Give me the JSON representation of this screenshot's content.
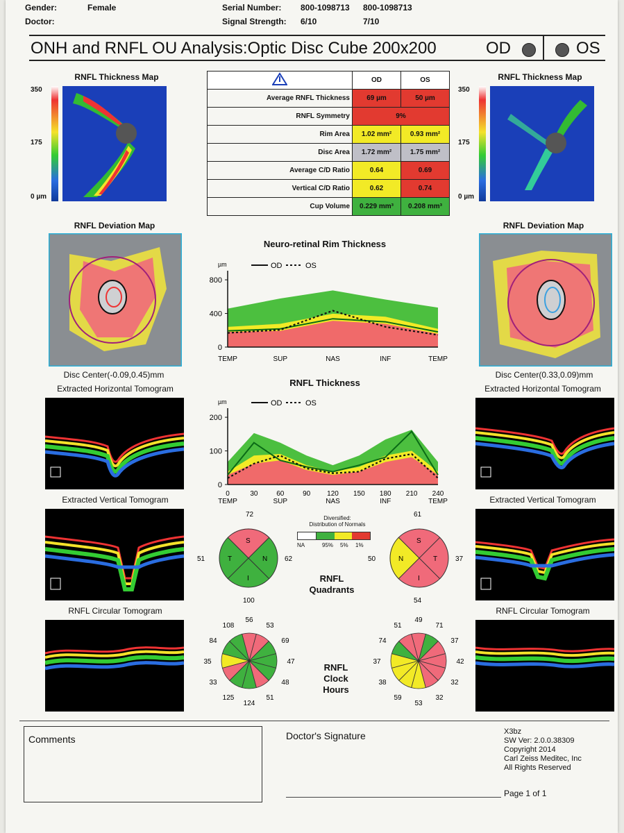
{
  "header": {
    "gender_label": "Gender:",
    "gender_value": "Female",
    "doctor_label": "Doctor:",
    "serial_label": "Serial Number:",
    "serial_od": "800-1098713",
    "serial_os": "800-1098713",
    "signal_label": "Signal Strength:",
    "signal_od": "6/10",
    "signal_os": "7/10"
  },
  "title": {
    "text": "ONH and RNFL OU Analysis:Optic Disc Cube 200x200",
    "od": "OD",
    "os": "OS"
  },
  "maps": {
    "thickness_title": "RNFL Thickness Map",
    "scale_max": "350",
    "scale_mid": "175",
    "scale_min": "0 µm",
    "deviation_title": "RNFL Deviation Map",
    "disc_center_od": "Disc Center(-0.09,0.45)mm",
    "disc_center_os": "Disc Center(0.33,0.09)mm",
    "horiz_title": "Extracted Horizontal Tomogram",
    "vert_title": "Extracted Vertical Tomogram",
    "circ_title": "RNFL Circular Tomogram"
  },
  "metrics": {
    "col_od": "OD",
    "col_os": "OS",
    "rows": [
      {
        "label": "Average RNFL Thickness",
        "od": "69 µm",
        "os": "50 µm",
        "od_color": "red",
        "os_color": "red"
      },
      {
        "label": "RNFL Symmetry",
        "merged": "9%",
        "color": "red"
      },
      {
        "label": "Rim Area",
        "od": "1.02 mm²",
        "os": "0.93 mm²",
        "od_color": "yellow",
        "os_color": "yellow"
      },
      {
        "label": "Disc Area",
        "od": "1.72 mm²",
        "os": "1.75 mm²",
        "od_color": "grey",
        "os_color": "grey"
      },
      {
        "label": "Average C/D Ratio",
        "od": "0.64",
        "os": "0.69",
        "od_color": "yellow",
        "os_color": "red"
      },
      {
        "label": "Vertical C/D Ratio",
        "od": "0.62",
        "os": "0.74",
        "od_color": "yellow",
        "os_color": "red"
      },
      {
        "label": "Cup Volume",
        "od": "0.229 mm³",
        "os": "0.208 mm³",
        "od_color": "green",
        "os_color": "green"
      }
    ]
  },
  "chart_data": [
    {
      "type": "line",
      "title": "Neuro-retinal Rim Thickness",
      "ylabel": "µm",
      "ylim": [
        0,
        700
      ],
      "yticks": [
        "0",
        "400",
        "800"
      ],
      "xticks": [
        "TEMP",
        "SUP",
        "NAS",
        "INF",
        "TEMP"
      ],
      "legend": [
        "OD",
        "OS"
      ],
      "x": [
        0,
        1,
        2,
        3,
        4
      ],
      "series": [
        {
          "name": "OD",
          "values": [
            160,
            180,
            280,
            250,
            150
          ]
        },
        {
          "name": "OS",
          "values": [
            140,
            170,
            360,
            200,
            120
          ]
        }
      ]
    },
    {
      "type": "line",
      "title": "RNFL Thickness",
      "ylabel": "µm",
      "ylim": [
        0,
        220
      ],
      "yticks": [
        "0",
        "100",
        "200"
      ],
      "xticks": [
        "0",
        "30",
        "60",
        "90",
        "120",
        "150",
        "180",
        "210",
        "240"
      ],
      "xlabels": [
        "TEMP",
        "SUP",
        "NAS",
        "INF",
        "TEMP"
      ],
      "legend": [
        "OD",
        "OS"
      ],
      "x": [
        0,
        30,
        60,
        90,
        120,
        150,
        180,
        210,
        240
      ],
      "series": [
        {
          "name": "OD",
          "values": [
            30,
            130,
            75,
            55,
            40,
            60,
            85,
            165,
            30
          ]
        },
        {
          "name": "OS",
          "values": [
            20,
            65,
            90,
            50,
            35,
            40,
            80,
            95,
            20
          ]
        }
      ]
    }
  ],
  "legend_distribution": {
    "title": "Distribution of Normals",
    "label": "Diversified:",
    "na": "NA",
    "p95": "95%",
    "p5": "5%",
    "p1": "1%"
  },
  "quadrants": {
    "label_line1": "RNFL",
    "label_line2": "Quadrants",
    "od": {
      "top": "72",
      "left": "51",
      "right": "62",
      "bottom": "100",
      "S": "S",
      "T": "T",
      "N": "N",
      "I": "I"
    },
    "os": {
      "top": "61",
      "left": "50",
      "right": "37",
      "bottom": "54",
      "S": "S",
      "T": "T",
      "N": "N",
      "I": "I"
    }
  },
  "clock": {
    "label_line1": "RNFL",
    "label_line2": "Clock",
    "label_line3": "Hours",
    "od": [
      "56",
      "53",
      "69",
      "47",
      "48",
      "51",
      "124",
      "125",
      "33",
      "35",
      "84",
      "108"
    ],
    "os": [
      "49",
      "71",
      "37",
      "42",
      "32",
      "32",
      "53",
      "59",
      "38",
      "37",
      "74",
      "51"
    ]
  },
  "footer": {
    "comments": "Comments",
    "signature": "Doctor's Signature",
    "sw_lines": [
      "X3bz",
      "SW Ver: 2.0.0.38309",
      "Copyright 2014",
      "Carl Zeiss Meditec, Inc",
      "All Rights Reserved"
    ],
    "page": "Page 1 of 1"
  }
}
